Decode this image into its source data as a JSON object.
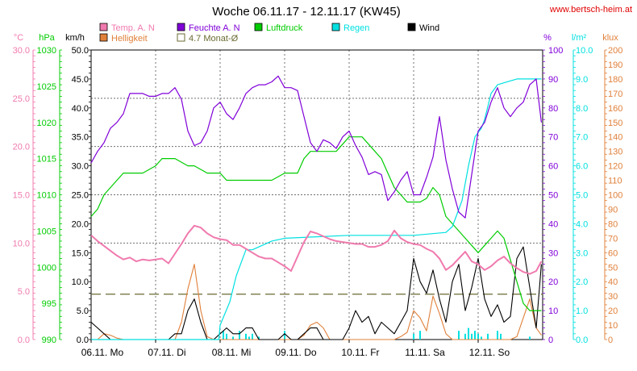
{
  "title": "Woche 06.11.17 - 12.11.17 (KW45)",
  "site": "www.bertsch-heim.at",
  "colors": {
    "temp": "#f07aae",
    "humidity": "#8000d8",
    "pressure": "#00cc00",
    "rain": "#00e0e0",
    "wind": "#000000",
    "brightness": "#e0803a",
    "monthavg": "#6b6b33",
    "grid": "#707070",
    "site": "#e00000"
  },
  "legend": [
    {
      "label": "Temp. A. N",
      "color": "#f07aae",
      "symbol": "box"
    },
    {
      "label": "Feuchte A. N",
      "color": "#8000d8",
      "symbol": "box"
    },
    {
      "label": "Luftdruck",
      "color": "#00cc00",
      "symbol": "box"
    },
    {
      "label": "Regen",
      "color": "#00e0e0",
      "symbol": "box"
    },
    {
      "label": "Wind",
      "color": "#000000",
      "symbol": "box"
    },
    {
      "label": "Helligkeit",
      "color": "#e0803a",
      "symbol": "box"
    },
    {
      "label": "4.7 Monat-Ø",
      "color": "#6b6b33",
      "symbol": "outline"
    }
  ],
  "chart_data": {
    "type": "line",
    "title": "Woche 06.11.17 - 12.11.17 (KW45)",
    "x_range": [
      0,
      7
    ],
    "x_ticks": [
      "06.11. Mo",
      "07.11. Di",
      "08.11. Mi",
      "09.11. Do",
      "10.11. Fr",
      "11.11. Sa",
      "12.11. So"
    ],
    "grid": true,
    "axes": [
      {
        "unit": "°C",
        "min": 0,
        "max": 30,
        "ticks": [
          "0.0",
          "5.0",
          "10.0",
          "15.0",
          "20.0",
          "25.0",
          "30.0"
        ],
        "color": "#f07aae",
        "side": "left"
      },
      {
        "unit": "hPa",
        "min": 990,
        "max": 1030,
        "ticks": [
          "990",
          "995",
          "1000",
          "1005",
          "1010",
          "1015",
          "1020",
          "1025",
          "1030"
        ],
        "color": "#00cc00",
        "side": "left"
      },
      {
        "unit": "km/h",
        "min": 0,
        "max": 50,
        "ticks": [
          "0.0",
          "5.0",
          "10.0",
          "15.0",
          "20.0",
          "25.0",
          "30.0",
          "35.0",
          "40.0",
          "45.0",
          "50.0"
        ],
        "color": "#000000",
        "side": "left"
      },
      {
        "unit": "%",
        "min": 0,
        "max": 100,
        "ticks": [
          "0",
          "10",
          "20",
          "30",
          "40",
          "50",
          "60",
          "70",
          "80",
          "90",
          "100"
        ],
        "color": "#8000d8",
        "side": "right"
      },
      {
        "unit": "l/m²",
        "min": 0,
        "max": 10,
        "ticks": [
          "0.0",
          "1.0",
          "2.0",
          "3.0",
          "4.0",
          "5.0",
          "6.0",
          "7.0",
          "8.0",
          "9.0",
          "10.0"
        ],
        "color": "#00e0e0",
        "side": "right"
      },
      {
        "unit": "klux",
        "min": 0,
        "max": 200,
        "ticks": [
          "0",
          "10",
          "20",
          "30",
          "40",
          "50",
          "60",
          "70",
          "80",
          "90",
          "100",
          "110",
          "120",
          "130",
          "140",
          "150",
          "160",
          "170",
          "180",
          "190",
          "200"
        ],
        "color": "#e0803a",
        "side": "right"
      }
    ],
    "series": [
      {
        "name": "Temp. A. N",
        "axis": "°C",
        "x": [
          0,
          0.1,
          0.2,
          0.3,
          0.4,
          0.5,
          0.6,
          0.7,
          0.8,
          0.9,
          1.0,
          1.1,
          1.2,
          1.3,
          1.4,
          1.5,
          1.6,
          1.7,
          1.8,
          1.9,
          2.0,
          2.1,
          2.2,
          2.3,
          2.4,
          2.5,
          2.6,
          2.7,
          2.8,
          2.9,
          3.0,
          3.1,
          3.2,
          3.3,
          3.4,
          3.5,
          3.6,
          3.7,
          3.8,
          3.9,
          4.0,
          4.1,
          4.2,
          4.3,
          4.4,
          4.5,
          4.6,
          4.7,
          4.8,
          4.9,
          5.0,
          5.1,
          5.2,
          5.3,
          5.4,
          5.5,
          5.6,
          5.7,
          5.8,
          5.9,
          6.0,
          6.1,
          6.2,
          6.3,
          6.4,
          6.5,
          6.6,
          6.7,
          6.8,
          6.9,
          6.98
        ],
        "y": [
          10.8,
          10.2,
          9.7,
          9.2,
          8.7,
          8.3,
          8.5,
          8.1,
          8.3,
          8.2,
          8.3,
          8.4,
          7.9,
          8.9,
          9.9,
          11.0,
          11.8,
          11.6,
          11.0,
          10.6,
          10.4,
          10.3,
          9.8,
          9.8,
          9.4,
          9.0,
          8.6,
          8.4,
          8.4,
          8.0,
          7.6,
          7.1,
          8.6,
          10.1,
          11.2,
          11.0,
          10.7,
          10.4,
          10.2,
          10.1,
          10.0,
          9.9,
          9.9,
          9.6,
          9.6,
          9.8,
          10.2,
          11.3,
          10.5,
          10.1,
          9.9,
          9.8,
          9.4,
          9.1,
          8.4,
          7.2,
          7.7,
          8.4,
          9.1,
          8.1,
          7.8,
          7.2,
          7.6,
          8.2,
          8.6,
          7.9,
          7.4,
          7.0,
          6.8,
          7.1,
          8.1
        ]
      },
      {
        "name": "Feuchte A. N",
        "axis": "%",
        "x": [
          0,
          0.1,
          0.2,
          0.3,
          0.4,
          0.5,
          0.6,
          0.7,
          0.8,
          0.9,
          1.0,
          1.1,
          1.2,
          1.3,
          1.4,
          1.5,
          1.6,
          1.7,
          1.8,
          1.9,
          2.0,
          2.1,
          2.2,
          2.3,
          2.4,
          2.5,
          2.6,
          2.7,
          2.8,
          2.9,
          3.0,
          3.1,
          3.2,
          3.3,
          3.4,
          3.5,
          3.6,
          3.7,
          3.8,
          3.9,
          4.0,
          4.1,
          4.2,
          4.3,
          4.4,
          4.5,
          4.6,
          4.7,
          4.8,
          4.9,
          5.0,
          5.1,
          5.2,
          5.3,
          5.4,
          5.5,
          5.6,
          5.7,
          5.8,
          5.9,
          6.0,
          6.1,
          6.2,
          6.3,
          6.4,
          6.5,
          6.6,
          6.7,
          6.8,
          6.9,
          6.98
        ],
        "y": [
          61,
          65,
          68,
          73,
          75,
          78,
          85,
          85,
          85,
          84,
          84,
          85,
          85,
          87,
          83,
          72,
          67,
          68,
          72,
          80,
          82,
          78,
          76,
          80,
          85,
          87,
          88,
          88,
          89,
          91,
          87,
          87,
          86,
          77,
          68,
          65,
          69,
          68,
          66,
          70,
          72,
          67,
          63,
          57,
          58,
          57,
          48,
          51,
          55,
          58,
          50,
          50,
          56,
          63,
          77,
          62,
          52,
          44,
          42,
          57,
          72,
          75,
          82,
          87,
          80,
          77,
          80,
          82,
          88,
          90,
          75
        ]
      },
      {
        "name": "Luftdruck",
        "axis": "hPa",
        "x": [
          0,
          0.1,
          0.2,
          0.3,
          0.4,
          0.5,
          0.6,
          0.7,
          0.8,
          0.9,
          1.0,
          1.1,
          1.2,
          1.3,
          1.4,
          1.5,
          1.6,
          1.7,
          1.8,
          1.9,
          2.0,
          2.1,
          2.2,
          2.3,
          2.4,
          2.5,
          2.6,
          2.7,
          2.8,
          2.9,
          3.0,
          3.1,
          3.2,
          3.3,
          3.4,
          3.5,
          3.6,
          3.7,
          3.8,
          3.9,
          4.0,
          4.1,
          4.2,
          4.3,
          4.4,
          4.5,
          4.6,
          4.7,
          4.8,
          4.9,
          5.0,
          5.1,
          5.2,
          5.3,
          5.4,
          5.5,
          5.6,
          5.7,
          5.8,
          5.9,
          6.0,
          6.1,
          6.2,
          6.3,
          6.4,
          6.5,
          6.6,
          6.7,
          6.8,
          6.9,
          6.98
        ],
        "y": [
          1007,
          1008,
          1010,
          1011,
          1012,
          1013,
          1013,
          1013,
          1013,
          1013.5,
          1014,
          1015,
          1015,
          1015,
          1014.5,
          1014,
          1014,
          1013.5,
          1013,
          1013,
          1013,
          1012,
          1012,
          1012,
          1012,
          1012,
          1012,
          1012,
          1012,
          1012.5,
          1013,
          1013,
          1013,
          1015,
          1016,
          1016,
          1016,
          1016,
          1016,
          1017,
          1018,
          1018,
          1018,
          1017,
          1016,
          1015,
          1013,
          1011,
          1010,
          1009,
          1009,
          1009,
          1009.5,
          1011,
          1010,
          1007,
          1006,
          1005,
          1004,
          1003,
          1002,
          1003,
          1004,
          1005,
          1004,
          1001,
          998,
          995,
          994,
          994,
          994
        ]
      },
      {
        "name": "Regen",
        "axis": "l/m²",
        "x": [
          0,
          1.98,
          2.0,
          2.15,
          2.25,
          2.4,
          2.5,
          2.8,
          3.0,
          4.0,
          5.0,
          5.5,
          5.6,
          5.75,
          5.85,
          5.95,
          6.05,
          6.1,
          6.2,
          6.3,
          6.6,
          6.98
        ],
        "y": [
          0,
          0,
          0.5,
          1.3,
          2.2,
          3.1,
          3.1,
          3.4,
          3.5,
          3.6,
          3.6,
          3.7,
          3.9,
          4.8,
          6.0,
          7.0,
          7.3,
          7.6,
          8.5,
          8.8,
          9.0,
          9.0
        ]
      },
      {
        "name": "Wind",
        "axis": "km/h",
        "x": [
          0,
          0.1,
          0.2,
          0.3,
          0.4,
          0.5,
          0.6,
          0.7,
          0.8,
          0.9,
          1.0,
          1.1,
          1.2,
          1.3,
          1.4,
          1.5,
          1.6,
          1.7,
          1.8,
          1.9,
          2.0,
          2.1,
          2.2,
          2.3,
          2.4,
          2.5,
          2.6,
          2.7,
          2.8,
          2.9,
          3.0,
          3.1,
          3.2,
          3.3,
          3.4,
          3.5,
          3.6,
          3.7,
          3.8,
          3.9,
          4.0,
          4.1,
          4.2,
          4.3,
          4.4,
          4.5,
          4.6,
          4.7,
          4.8,
          4.9,
          5.0,
          5.1,
          5.2,
          5.3,
          5.4,
          5.5,
          5.6,
          5.7,
          5.8,
          5.9,
          6.0,
          6.1,
          6.2,
          6.3,
          6.4,
          6.5,
          6.6,
          6.7,
          6.8,
          6.9,
          6.98
        ],
        "y": [
          3,
          2,
          1,
          0,
          0,
          0,
          0,
          0,
          0,
          0,
          0,
          0,
          0,
          1,
          1,
          5,
          7,
          3,
          0,
          0,
          1,
          2,
          1,
          1,
          2,
          2,
          0,
          0,
          0,
          0,
          1,
          0,
          0,
          1,
          2,
          2,
          0,
          0,
          0,
          0,
          2,
          5,
          3,
          4,
          1,
          3,
          2,
          1,
          3,
          5,
          14,
          10,
          8,
          12,
          7,
          3,
          10,
          13,
          5,
          9,
          14,
          7,
          4,
          6,
          3,
          4,
          14,
          16,
          9,
          2,
          13
        ]
      },
      {
        "name": "Helligkeit",
        "axis": "klux",
        "x": [
          0,
          0.1,
          0.2,
          0.3,
          0.4,
          0.5,
          0.6,
          0.7,
          0.8,
          0.9,
          1.0,
          1.1,
          1.2,
          1.3,
          1.4,
          1.5,
          1.6,
          1.7,
          1.8,
          1.9,
          2.0,
          2.1,
          2.2,
          2.3,
          2.4,
          2.5,
          2.6,
          2.7,
          2.8,
          2.9,
          3.0,
          3.1,
          3.2,
          3.3,
          3.4,
          3.5,
          3.6,
          3.7,
          3.8,
          3.9,
          4.0,
          4.1,
          4.2,
          4.3,
          4.4,
          4.5,
          4.6,
          4.7,
          4.8,
          4.9,
          5.0,
          5.1,
          5.2,
          5.3,
          5.4,
          5.5,
          5.6,
          5.7,
          5.8,
          5.9,
          6.0,
          6.1,
          6.2,
          6.3,
          6.4,
          6.5,
          6.6,
          6.7,
          6.8,
          6.9,
          6.98
        ],
        "y": [
          0,
          0,
          4,
          3,
          1,
          0,
          0,
          0,
          0,
          0,
          0,
          0,
          0,
          0,
          12,
          35,
          52,
          20,
          2,
          0,
          0,
          0,
          0,
          0,
          0,
          0,
          0,
          0,
          0,
          0,
          0,
          0,
          0,
          3,
          10,
          12,
          8,
          0,
          0,
          0,
          0,
          0,
          0,
          0,
          0,
          0,
          0,
          0,
          2,
          5,
          20,
          15,
          6,
          30,
          18,
          4,
          0,
          0,
          0,
          0,
          0,
          0,
          0,
          0,
          0,
          0,
          2,
          15,
          28,
          8,
          3
        ]
      }
    ],
    "rain_bars": {
      "x": [
        2.05,
        2.1,
        2.2,
        2.3,
        2.4,
        2.45,
        2.5,
        2.6,
        3.0,
        5.0,
        5.1,
        5.7,
        5.8,
        5.85,
        5.9,
        5.95,
        6.0,
        6.05,
        6.15,
        6.3,
        6.35,
        6.8
      ],
      "y": [
        0.3,
        0.2,
        0.1,
        0.3,
        0.2,
        0.1,
        0.2,
        0.1,
        0.3,
        0.2,
        0.3,
        0.3,
        0.2,
        0.4,
        0.2,
        0.3,
        0.2,
        0.1,
        0.2,
        0.3,
        0.2,
        0.1
      ]
    },
    "month_avg": {
      "label": "4.7 Monat-Ø",
      "value": 4.7,
      "axis": "°C"
    }
  }
}
